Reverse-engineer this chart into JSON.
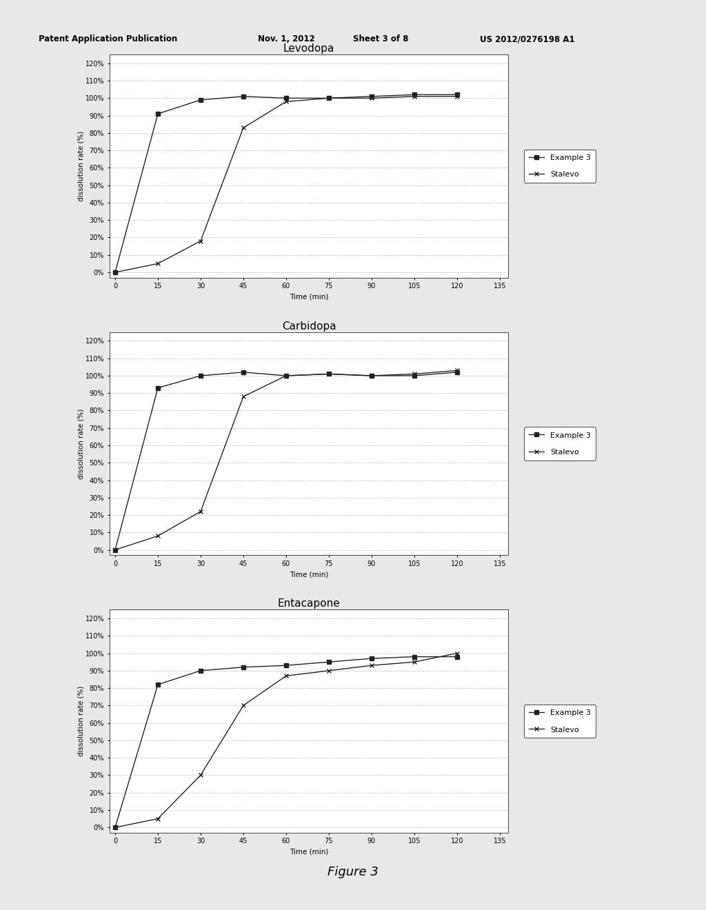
{
  "charts": [
    {
      "title": "Levodopa",
      "example3": {
        "x": [
          0,
          15,
          30,
          45,
          60,
          75,
          90,
          105,
          120
        ],
        "y": [
          0,
          91,
          99,
          101,
          100,
          100,
          101,
          102,
          102
        ]
      },
      "stalevo": {
        "x": [
          0,
          15,
          30,
          45,
          60,
          75,
          90,
          105,
          120
        ],
        "y": [
          0,
          5,
          18,
          83,
          98,
          100,
          100,
          101,
          101
        ]
      }
    },
    {
      "title": "Carbidopa",
      "example3": {
        "x": [
          0,
          15,
          30,
          45,
          60,
          75,
          90,
          105,
          120
        ],
        "y": [
          0,
          93,
          100,
          102,
          100,
          101,
          100,
          100,
          102
        ]
      },
      "stalevo": {
        "x": [
          0,
          15,
          30,
          45,
          60,
          75,
          90,
          105,
          120
        ],
        "y": [
          0,
          8,
          22,
          88,
          100,
          101,
          100,
          101,
          103
        ]
      }
    },
    {
      "title": "Entacapone",
      "example3": {
        "x": [
          0,
          15,
          30,
          45,
          60,
          75,
          90,
          105,
          120
        ],
        "y": [
          0,
          82,
          90,
          92,
          93,
          95,
          97,
          98,
          98
        ]
      },
      "stalevo": {
        "x": [
          0,
          15,
          30,
          45,
          60,
          75,
          90,
          105,
          120
        ],
        "y": [
          0,
          5,
          30,
          70,
          87,
          90,
          93,
          95,
          100
        ]
      }
    }
  ],
  "xlabel": "Time (min)",
  "ylabel": "dissolution rate (%)",
  "yticks": [
    0,
    10,
    20,
    30,
    40,
    50,
    60,
    70,
    80,
    90,
    100,
    110,
    120
  ],
  "ytick_labels": [
    "0%",
    "10%",
    "20%",
    "30%",
    "40%",
    "50%",
    "60%",
    "70%",
    "80%",
    "90%",
    "100%",
    "110%",
    "120%"
  ],
  "xticks": [
    0,
    15,
    30,
    45,
    60,
    75,
    90,
    105,
    120,
    135
  ],
  "xlim": [
    -2,
    138
  ],
  "legend_example3": "Example 3",
  "legend_stalevo": "Stalevo",
  "line_color": "#222222",
  "marker_square": "s",
  "marker_x": "x",
  "bg_color": "#ffffff",
  "page_bg": "#e8e8e8",
  "figure_label": "Figure 3",
  "title_fontsize": 11,
  "axis_fontsize": 7.5,
  "tick_fontsize": 7,
  "legend_fontsize": 8,
  "header_left": "Patent Application Publication",
  "header_mid1": "Nov. 1, 2012",
  "header_mid2": "Sheet 3 of 8",
  "header_right": "US 2012/0276198 A1"
}
